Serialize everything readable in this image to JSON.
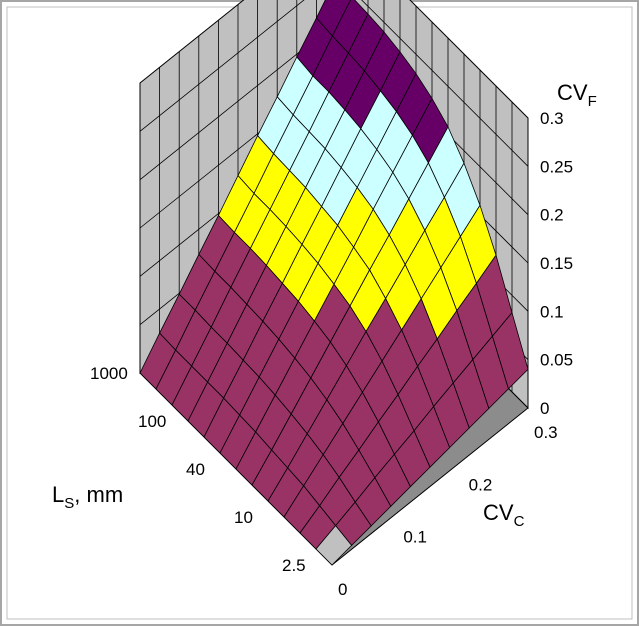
{
  "chart_data": {
    "type": "surface3d",
    "title": "",
    "colors": {
      "frame_border": "#a6a6a6",
      "wall": "#c0c0c0",
      "floor": "#8c8c8c",
      "grid": "#000000",
      "bands": [
        "#c0c0c0",
        "#993366",
        "#ffff00",
        "#ccffff",
        "#660066",
        "#ff9999"
      ]
    },
    "band_edges": [
      0.0,
      0.1,
      0.15,
      0.2,
      0.25
    ],
    "x_axis": {
      "title_main": "CV",
      "title_sub": "C",
      "ticks": [
        "0",
        "0.1",
        "0.2",
        "0.3"
      ],
      "values": [
        0,
        0.03,
        0.06,
        0.09,
        0.12,
        0.15,
        0.18,
        0.21,
        0.24,
        0.27,
        0.3
      ],
      "range": [
        0,
        0.3
      ]
    },
    "y_axis": {
      "title_main": "L",
      "title_sub": "S",
      "title_suffix": ", mm",
      "ticks": [
        "2.5",
        "10",
        "40",
        "100",
        "1000"
      ]
    },
    "z_axis": {
      "title_main": "CV",
      "title_sub": "F",
      "ticks": [
        "0",
        "0.05",
        "0.1",
        "0.15",
        "0.2",
        "0.25",
        "0.3"
      ],
      "range": [
        0,
        0.3
      ]
    },
    "rows": [
      [
        0.0,
        0.004,
        0.008,
        0.012,
        0.016,
        0.02,
        0.024,
        0.028,
        0.032,
        0.036,
        0.04
      ],
      [
        0.0,
        0.008,
        0.016,
        0.025,
        0.033,
        0.041,
        0.05,
        0.058,
        0.066,
        0.074,
        0.082
      ],
      [
        0.0,
        0.012,
        0.025,
        0.037,
        0.05,
        0.062,
        0.075,
        0.087,
        0.1,
        0.112,
        0.125
      ],
      [
        0.0,
        0.016,
        0.032,
        0.048,
        0.064,
        0.08,
        0.096,
        0.112,
        0.128,
        0.144,
        0.16
      ],
      [
        0.0,
        0.018,
        0.037,
        0.056,
        0.075,
        0.094,
        0.112,
        0.131,
        0.15,
        0.168,
        0.187
      ],
      [
        0.0,
        0.02,
        0.041,
        0.062,
        0.083,
        0.104,
        0.125,
        0.145,
        0.166,
        0.187,
        0.208
      ],
      [
        0.0,
        0.022,
        0.044,
        0.066,
        0.088,
        0.11,
        0.132,
        0.155,
        0.177,
        0.199,
        0.221
      ],
      [
        0.0,
        0.023,
        0.046,
        0.069,
        0.092,
        0.115,
        0.138,
        0.161,
        0.184,
        0.207,
        0.23
      ],
      [
        0.0,
        0.024,
        0.047,
        0.071,
        0.094,
        0.118,
        0.141,
        0.165,
        0.189,
        0.212,
        0.236
      ],
      [
        0.0,
        0.024,
        0.048,
        0.072,
        0.096,
        0.12,
        0.144,
        0.168,
        0.192,
        0.216,
        0.24
      ],
      [
        0.0,
        0.024,
        0.048,
        0.073,
        0.097,
        0.121,
        0.145,
        0.169,
        0.194,
        0.218,
        0.242
      ],
      [
        0.0,
        0.024,
        0.049,
        0.073,
        0.097,
        0.121,
        0.146,
        0.17,
        0.194,
        0.219,
        0.243
      ],
      [
        0.0,
        0.025,
        0.049,
        0.074,
        0.098,
        0.123,
        0.148,
        0.172,
        0.197,
        0.221,
        0.246
      ]
    ]
  }
}
